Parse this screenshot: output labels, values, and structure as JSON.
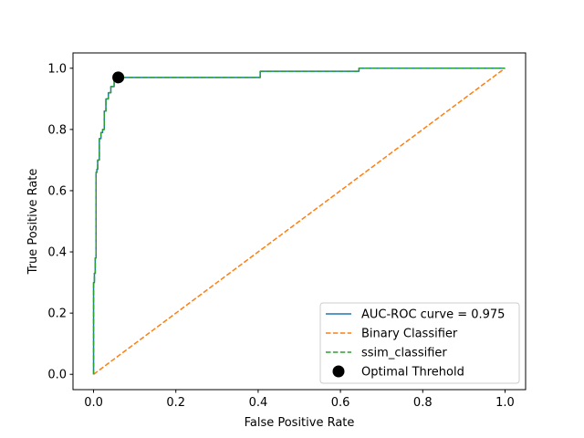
{
  "chart_data": {
    "type": "line",
    "title": "",
    "xlabel": "False Positive Rate",
    "ylabel": "True Positive Rate",
    "xlim": [
      -0.05,
      1.05
    ],
    "ylim": [
      -0.05,
      1.05
    ],
    "xticks": [
      0.0,
      0.2,
      0.4,
      0.6,
      0.8,
      1.0
    ],
    "xtick_labels": [
      "0.0",
      "0.2",
      "0.4",
      "0.6",
      "0.8",
      "1.0"
    ],
    "yticks": [
      0.0,
      0.2,
      0.4,
      0.6,
      0.8,
      1.0
    ],
    "ytick_labels": [
      "0.0",
      "0.2",
      "0.4",
      "0.6",
      "0.8",
      "1.0"
    ],
    "grid": false,
    "legend_position": "lower-right",
    "series": [
      {
        "name": "AUC-ROC curve = 0.975",
        "style": "solid",
        "color": "#1f77b4",
        "x": [
          0.0,
          0.0,
          0.002,
          0.002,
          0.004,
          0.004,
          0.006,
          0.006,
          0.008,
          0.008,
          0.01,
          0.01,
          0.014,
          0.014,
          0.018,
          0.018,
          0.022,
          0.022,
          0.026,
          0.026,
          0.03,
          0.03,
          0.036,
          0.036,
          0.042,
          0.042,
          0.05,
          0.05,
          0.06,
          0.06,
          0.405,
          0.405,
          0.645,
          0.645,
          1.0
        ],
        "y": [
          0.0,
          0.3,
          0.3,
          0.33,
          0.33,
          0.38,
          0.38,
          0.66,
          0.66,
          0.67,
          0.67,
          0.7,
          0.7,
          0.77,
          0.77,
          0.79,
          0.79,
          0.8,
          0.8,
          0.86,
          0.86,
          0.9,
          0.9,
          0.92,
          0.92,
          0.94,
          0.94,
          0.96,
          0.96,
          0.97,
          0.97,
          0.99,
          0.99,
          1.0,
          1.0
        ]
      },
      {
        "name": "Binary Classifier",
        "style": "dashed",
        "color": "#ff7f0e",
        "x": [
          0.0,
          1.0
        ],
        "y": [
          0.0,
          1.0
        ]
      },
      {
        "name": "ssim_classifier",
        "style": "dashed",
        "color": "#2ca02c",
        "x": [
          0.0,
          0.0,
          0.002,
          0.002,
          0.004,
          0.004,
          0.006,
          0.006,
          0.008,
          0.008,
          0.01,
          0.01,
          0.014,
          0.014,
          0.018,
          0.018,
          0.022,
          0.022,
          0.026,
          0.026,
          0.03,
          0.03,
          0.036,
          0.036,
          0.042,
          0.042,
          0.05,
          0.05,
          0.06,
          0.06,
          0.405,
          0.405,
          0.645,
          0.645,
          1.0
        ],
        "y": [
          0.0,
          0.3,
          0.3,
          0.33,
          0.33,
          0.38,
          0.38,
          0.66,
          0.66,
          0.67,
          0.67,
          0.7,
          0.7,
          0.77,
          0.77,
          0.79,
          0.79,
          0.8,
          0.8,
          0.86,
          0.86,
          0.9,
          0.9,
          0.92,
          0.92,
          0.94,
          0.94,
          0.96,
          0.96,
          0.97,
          0.97,
          0.99,
          0.99,
          1.0,
          1.0
        ]
      }
    ],
    "points": [
      {
        "name": "Optimal Threhold",
        "x": 0.06,
        "y": 0.97,
        "color": "#000000"
      }
    ]
  }
}
